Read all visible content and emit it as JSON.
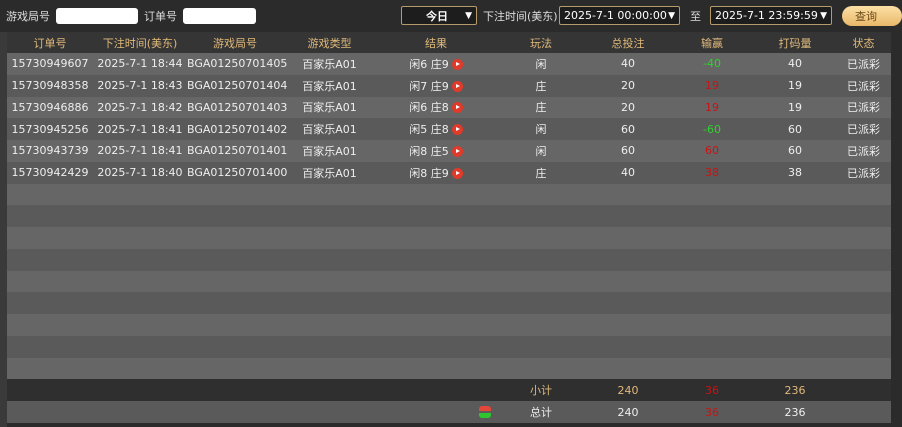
{
  "filters": {
    "round_label": "游戏局号",
    "round_value": "",
    "order_label": "订单号",
    "order_value": "",
    "period": "今日",
    "time_label": "下注时间(美东)",
    "start": "2025-7-1 00:00:00",
    "to_label": "至",
    "end": "2025-7-1 23:59:59",
    "query": "查询"
  },
  "columns": [
    "订单号",
    "下注时间(美东)",
    "游戏局号",
    "游戏类型",
    "结果",
    "玩法",
    "总投注",
    "输赢",
    "打码量",
    "状态"
  ],
  "rows": [
    {
      "order": "15730949607",
      "time": "2025-7-1 18:44",
      "round": "BGA01250701405",
      "type": "百家乐A01",
      "result": "闲6 庄9",
      "play": "闲",
      "bet": "40",
      "win": "-40",
      "win_color": "#2fd12f",
      "valid": "40",
      "status": "已派彩"
    },
    {
      "order": "15730948358",
      "time": "2025-7-1 18:43",
      "round": "BGA01250701404",
      "type": "百家乐A01",
      "result": "闲7 庄9",
      "play": "庄",
      "bet": "20",
      "win": "19",
      "win_color": "#c81414",
      "valid": "19",
      "status": "已派彩"
    },
    {
      "order": "15730946886",
      "time": "2025-7-1 18:42",
      "round": "BGA01250701403",
      "type": "百家乐A01",
      "result": "闲6 庄8",
      "play": "庄",
      "bet": "20",
      "win": "19",
      "win_color": "#c81414",
      "valid": "19",
      "status": "已派彩"
    },
    {
      "order": "15730945256",
      "time": "2025-7-1 18:41",
      "round": "BGA01250701402",
      "type": "百家乐A01",
      "result": "闲5 庄8",
      "play": "闲",
      "bet": "60",
      "win": "-60",
      "win_color": "#2fd12f",
      "valid": "60",
      "status": "已派彩"
    },
    {
      "order": "15730943739",
      "time": "2025-7-1 18:41",
      "round": "BGA01250701401",
      "type": "百家乐A01",
      "result": "闲8 庄5",
      "play": "闲",
      "bet": "60",
      "win": "60",
      "win_color": "#c81414",
      "valid": "60",
      "status": "已派彩"
    },
    {
      "order": "15730942429",
      "time": "2025-7-1 18:40",
      "round": "BGA01250701400",
      "type": "百家乐A01",
      "result": "闲8 庄9",
      "play": "庄",
      "bet": "40",
      "win": "38",
      "win_color": "#c81414",
      "valid": "38",
      "status": "已派彩"
    }
  ],
  "subtotal": {
    "label": "小计",
    "bet": "240",
    "win": "36",
    "valid": "236"
  },
  "total": {
    "label": "总计",
    "bet": "240",
    "win": "36",
    "valid": "236"
  }
}
